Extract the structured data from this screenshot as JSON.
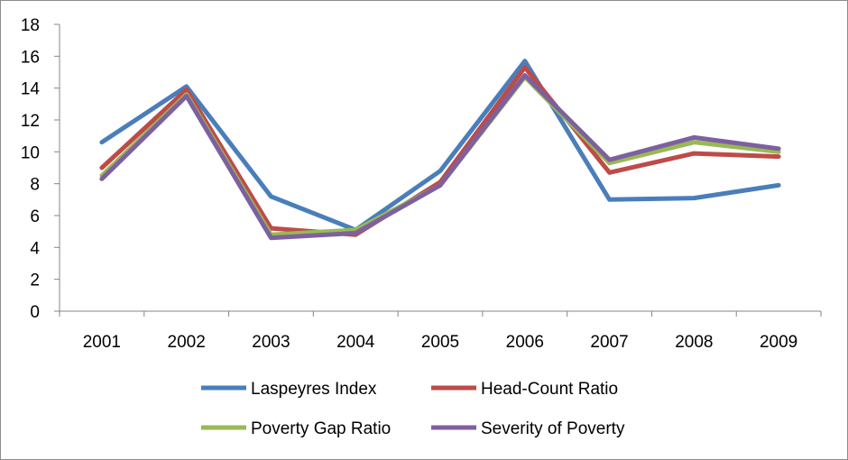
{
  "chart_data": {
    "type": "line",
    "title": "",
    "xlabel": "",
    "ylabel": "",
    "categories": [
      "2001",
      "2002",
      "2003",
      "2004",
      "2005",
      "2006",
      "2007",
      "2008",
      "2009"
    ],
    "ylim": [
      0,
      18
    ],
    "yticks": [
      "0",
      "2",
      "4",
      "6",
      "8",
      "10",
      "12",
      "14",
      "16",
      "18"
    ],
    "grid": false,
    "legend_position": "bottom",
    "series": [
      {
        "name": "Laspeyres Index",
        "color": "#4a7ebb",
        "values": [
          10.6,
          14.1,
          7.2,
          5.1,
          8.8,
          15.7,
          7.0,
          7.1,
          7.9
        ]
      },
      {
        "name": "Head-Count Ratio",
        "color": "#be4b48",
        "values": [
          9.0,
          13.9,
          5.2,
          4.8,
          8.1,
          15.3,
          8.7,
          9.9,
          9.7
        ]
      },
      {
        "name": "Poverty Gap Ratio",
        "color": "#98b954",
        "values": [
          8.5,
          13.6,
          4.8,
          5.1,
          7.9,
          14.7,
          9.3,
          10.6,
          10.0
        ]
      },
      {
        "name": "Severity of Poverty",
        "color": "#7d60a0",
        "values": [
          8.3,
          13.5,
          4.6,
          4.9,
          7.9,
          14.8,
          9.5,
          10.9,
          10.2
        ]
      }
    ]
  }
}
